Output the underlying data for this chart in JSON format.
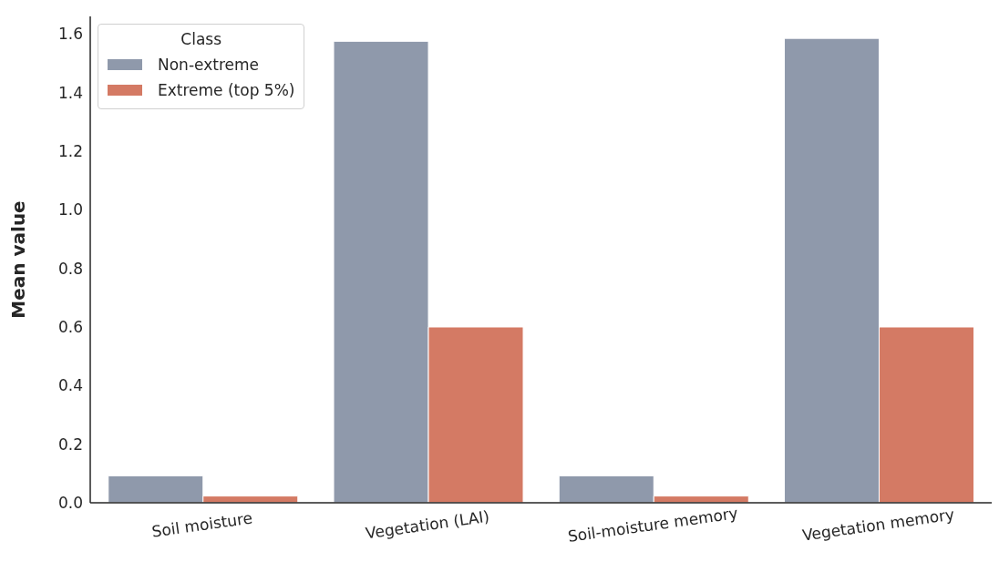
{
  "chart_data": {
    "type": "bar",
    "ylabel": "Mean value",
    "legend_title": "Class",
    "legend": "top left",
    "grid": false,
    "categories": [
      "Soil moisture",
      "Vegetation (LAI)",
      "Soil-moisture memory",
      "Vegetation memory"
    ],
    "series": [
      {
        "name": "Non-extreme",
        "color": "#8f99ab",
        "values": [
          0.092,
          1.575,
          0.092,
          1.585
        ]
      },
      {
        "name": "Extreme (top 5%)",
        "color": "#d47a64",
        "values": [
          0.023,
          0.6,
          0.023,
          0.6
        ]
      }
    ],
    "ylim": [
      0,
      1.66
    ],
    "yticks": [
      {
        "value": 0,
        "label": "0.0"
      },
      0.2,
      0.4,
      0.6,
      0.8,
      {
        "value": 1,
        "label": "1.0"
      },
      1.2,
      1.4,
      1.6
    ]
  }
}
